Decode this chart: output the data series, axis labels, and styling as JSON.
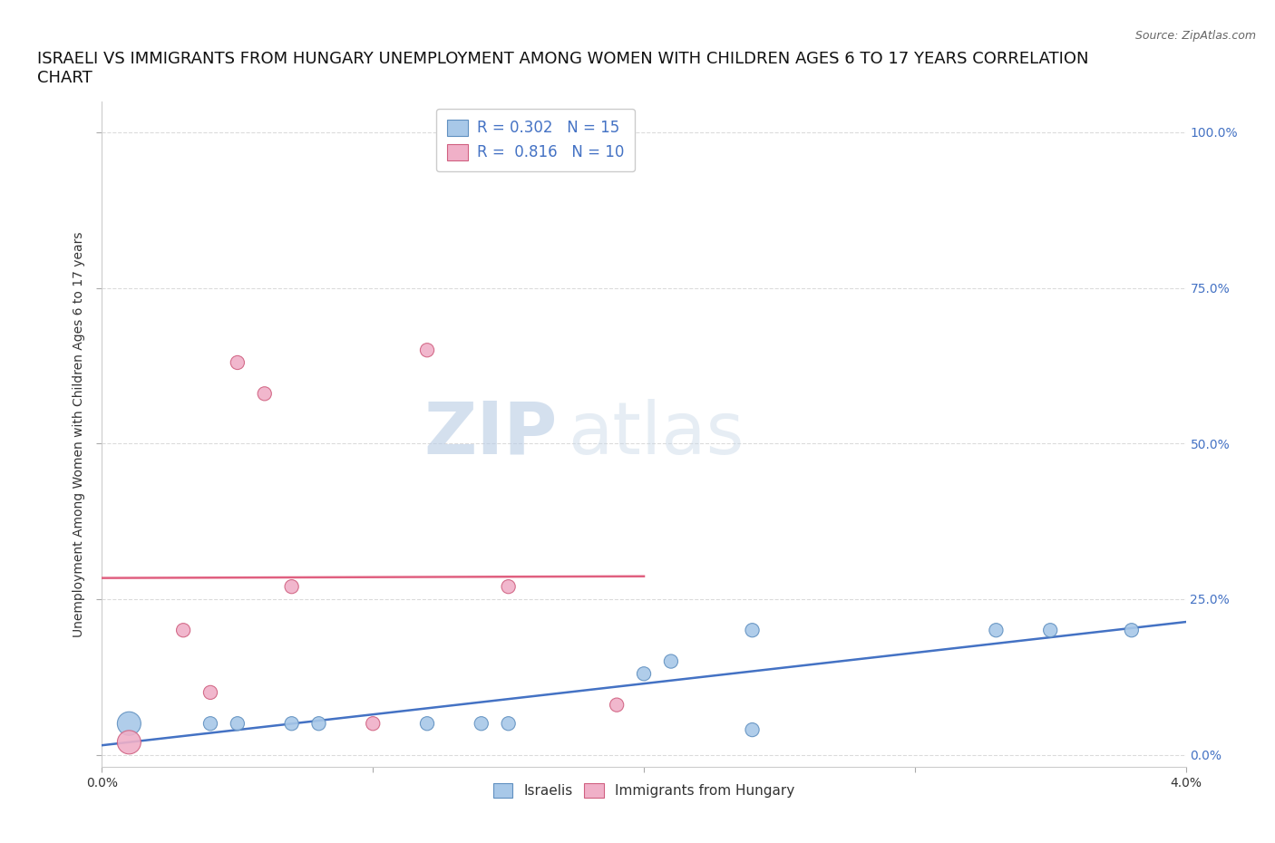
{
  "title_line1": "ISRAELI VS IMMIGRANTS FROM HUNGARY UNEMPLOYMENT AMONG WOMEN WITH CHILDREN AGES 6 TO 17 YEARS CORRELATION",
  "title_line2": "CHART",
  "source": "Source: ZipAtlas.com",
  "ylabel": "Unemployment Among Women with Children Ages 6 to 17 years",
  "ytick_labels": [
    "0.0%",
    "25.0%",
    "50.0%",
    "75.0%",
    "100.0%"
  ],
  "ytick_values": [
    0.0,
    0.25,
    0.5,
    0.75,
    1.0
  ],
  "xlim": [
    0.0,
    0.04
  ],
  "ylim": [
    -0.02,
    1.05
  ],
  "watermark_zip": "ZIP",
  "watermark_atlas": "atlas",
  "legend_label1": "Israelis",
  "legend_label2": "Immigrants from Hungary",
  "israeli_color": "#a8c8e8",
  "hungarian_color": "#f0b0c8",
  "israeli_edge_color": "#6090c0",
  "hungarian_edge_color": "#d06080",
  "trendline_israeli_color": "#4472c4",
  "trendline_hungary_color": "#e06080",
  "grid_color": "#d8d8d8",
  "bg_color": "#ffffff",
  "title_fontsize": 13,
  "axis_label_fontsize": 10,
  "tick_fontsize": 10,
  "R_israeli": 0.302,
  "N_israeli": 15,
  "R_hungary": 0.816,
  "N_hungary": 10,
  "israelis_x": [
    0.001,
    0.004,
    0.005,
    0.007,
    0.008,
    0.012,
    0.014,
    0.015,
    0.02,
    0.021,
    0.024,
    0.024,
    0.033,
    0.035,
    0.038
  ],
  "israelis_y": [
    0.05,
    0.05,
    0.05,
    0.05,
    0.05,
    0.05,
    0.05,
    0.05,
    0.13,
    0.15,
    0.04,
    0.2,
    0.2,
    0.2,
    0.2
  ],
  "hungarian_x": [
    0.001,
    0.003,
    0.004,
    0.005,
    0.006,
    0.007,
    0.01,
    0.012,
    0.015,
    0.019
  ],
  "hungarian_y": [
    0.02,
    0.2,
    0.1,
    0.63,
    0.58,
    0.27,
    0.05,
    0.65,
    0.27,
    0.08
  ],
  "israeli_sizes": [
    350,
    120,
    120,
    120,
    120,
    120,
    120,
    120,
    120,
    120,
    120,
    120,
    120,
    120,
    120
  ],
  "hungarian_sizes": [
    350,
    120,
    120,
    120,
    120,
    120,
    120,
    120,
    120,
    120
  ]
}
